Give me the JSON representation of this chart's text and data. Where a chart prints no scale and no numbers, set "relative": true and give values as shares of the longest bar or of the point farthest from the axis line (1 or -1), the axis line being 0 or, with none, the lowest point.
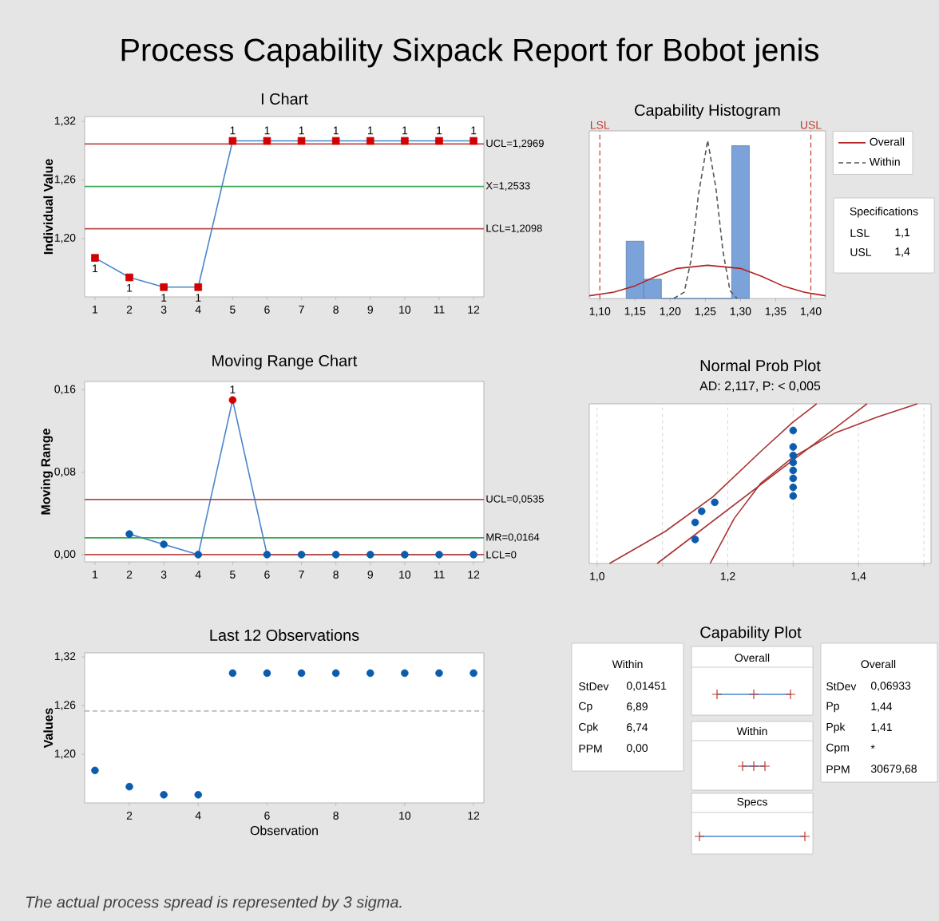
{
  "chart_data": [
    {
      "type": "other",
      "title": "Process Capability Sixpack Report for Bobot jenis",
      "annotations": [
        "The actual process spread is represented by 3 sigma."
      ]
    },
    {
      "type": "line",
      "title": "I Chart",
      "ylabel": "Individual Value",
      "x": [
        1,
        2,
        3,
        4,
        5,
        6,
        7,
        8,
        9,
        10,
        11,
        12
      ],
      "xlim": [
        0.7,
        12.3
      ],
      "ylim": [
        1.14,
        1.325
      ],
      "xticks": [
        1,
        2,
        3,
        4,
        5,
        6,
        7,
        8,
        9,
        10,
        11,
        12
      ],
      "yticks": [
        {
          "value": 1.2,
          "label": "1,20"
        },
        {
          "value": 1.26,
          "label": "1,26"
        },
        {
          "value": 1.32,
          "label": "1,32"
        }
      ],
      "marker": "square",
      "series": [
        {
          "color": "#4a86cc",
          "values": [
            1.18,
            1.16,
            1.15,
            1.15,
            1.3,
            1.3,
            1.3,
            1.3,
            1.3,
            1.3,
            1.3,
            1.3
          ],
          "colors": [
            "#d40000",
            "#d40000",
            "#d40000",
            "#d40000",
            "#d40000",
            "#d40000",
            "#d40000",
            "#d40000",
            "#d40000",
            "#d40000",
            "#d40000",
            "#d40000"
          ]
        }
      ],
      "ref_lines": [
        {
          "axis": "y",
          "value": 1.2969,
          "label": "UCL=1,2969",
          "color": "#b94a48"
        },
        {
          "axis": "y",
          "value": 1.2533,
          "label": "X=1,2533",
          "color": "#3aa655"
        },
        {
          "axis": "y",
          "value": 1.2098,
          "label": "LCL=1,2098",
          "color": "#b94a48"
        }
      ],
      "annotations": [
        {
          "text": "1",
          "x": 1,
          "y": 1.18
        },
        {
          "text": "1",
          "x": 2,
          "y": 1.16
        },
        {
          "text": "1",
          "x": 3,
          "y": 1.15
        },
        {
          "text": "1",
          "x": 4,
          "y": 1.15
        },
        {
          "text": "1",
          "x": 5,
          "y": 1.3
        },
        {
          "text": "1",
          "x": 6,
          "y": 1.3
        },
        {
          "text": "1",
          "x": 7,
          "y": 1.3
        },
        {
          "text": "1",
          "x": 8,
          "y": 1.3
        },
        {
          "text": "1",
          "x": 9,
          "y": 1.3
        },
        {
          "text": "1",
          "x": 10,
          "y": 1.3
        },
        {
          "text": "1",
          "x": 11,
          "y": 1.3
        },
        {
          "text": "1",
          "x": 12,
          "y": 1.3
        }
      ]
    },
    {
      "type": "histogram",
      "title": "Capability Histogram",
      "relative": true,
      "xlim": [
        1.085,
        1.421
      ],
      "xticks": [
        {
          "value": 1.1,
          "label": "1,10"
        },
        {
          "value": 1.15,
          "label": "1,15"
        },
        {
          "value": 1.2,
          "label": "1,20"
        },
        {
          "value": 1.25,
          "label": "1,25"
        },
        {
          "value": 1.3,
          "label": "1,30"
        },
        {
          "value": 1.35,
          "label": "1,35"
        },
        {
          "value": 1.4,
          "label": "1,40"
        }
      ],
      "legend": "right",
      "series": [
        {
          "type": "histogram",
          "color": "#7ba3d9",
          "bins": [
            1.1375,
            1.1625,
            1.1875,
            1.2125,
            1.2375,
            1.2625,
            1.2875,
            1.3125
          ],
          "values": [
            0.362,
            0.122,
            0,
            0,
            0,
            0,
            0.966
          ]
        },
        {
          "type": "line",
          "name": "Overall",
          "color": "#b22222",
          "x": [
            1.085,
            1.12,
            1.15,
            1.18,
            1.21,
            1.2533,
            1.3,
            1.33,
            1.36,
            1.39,
            1.421
          ],
          "values": [
            0.017,
            0.04,
            0.08,
            0.14,
            0.19,
            0.21,
            0.19,
            0.14,
            0.08,
            0.04,
            0.017
          ]
        },
        {
          "type": "line",
          "name": "Within",
          "color": "#555555",
          "line_style": "dashed",
          "x": [
            1.205,
            1.22,
            1.23,
            1.24,
            1.2533,
            1.265,
            1.275,
            1.285,
            1.295
          ],
          "values": [
            0,
            0.04,
            0.25,
            0.65,
            1.0,
            0.7,
            0.3,
            0.05,
            0
          ]
        }
      ],
      "ref_lines": [
        {
          "axis": "x",
          "value": 1.1,
          "label": "LSL",
          "color": "#c0392b",
          "line_style": "dashed"
        },
        {
          "axis": "x",
          "value": 1.4,
          "label": "USL",
          "color": "#c0392b",
          "line_style": "dashed"
        }
      ],
      "annotations": [
        "Specifications",
        "LSL",
        "1,1",
        "USL",
        "1,4"
      ]
    },
    {
      "type": "line",
      "title": "Moving Range Chart",
      "ylabel": "Moving Range",
      "x": [
        2,
        3,
        4,
        5,
        6,
        7,
        8,
        9,
        10,
        11,
        12
      ],
      "xlim": [
        0.7,
        12.3
      ],
      "ylim": [
        -0.007,
        0.168
      ],
      "xticks": [
        1,
        2,
        3,
        4,
        5,
        6,
        7,
        8,
        9,
        10,
        11,
        12
      ],
      "yticks": [
        {
          "value": 0,
          "label": "0,00"
        },
        {
          "value": 0.08,
          "label": "0,08"
        },
        {
          "value": 0.16,
          "label": "0,16"
        }
      ],
      "marker": "circle",
      "series": [
        {
          "color": "#4a86cc",
          "values": [
            0.02,
            0.01,
            0,
            0.15,
            0,
            0,
            0,
            0,
            0,
            0,
            0
          ],
          "colors": [
            "#0b5cad",
            "#0b5cad",
            "#0b5cad",
            "#d40000",
            "#0b5cad",
            "#0b5cad",
            "#0b5cad",
            "#0b5cad",
            "#0b5cad",
            "#0b5cad",
            "#0b5cad"
          ]
        }
      ],
      "ref_lines": [
        {
          "axis": "y",
          "value": 0.0535,
          "label": "UCL=0,0535",
          "color": "#b94a48"
        },
        {
          "axis": "y",
          "value": 0.0164,
          "label": "MR=0,0164",
          "color": "#3aa655"
        },
        {
          "axis": "y",
          "value": 0,
          "label": "LCL=0",
          "color": "#b94a48"
        }
      ],
      "annotations": [
        {
          "text": "1",
          "x": 5,
          "y": 0.15
        }
      ]
    },
    {
      "type": "scatter",
      "title": "Normal Prob Plot",
      "subtitle": "AD: 2,117, P: < 0,005",
      "relative": true,
      "xlim": [
        0.988,
        1.511
      ],
      "xticks": [
        {
          "value": 1.0,
          "label": "1,0"
        },
        {
          "value": 1.1,
          "label": null
        },
        {
          "value": 1.2,
          "label": "1,2"
        },
        {
          "value": 1.3,
          "label": null
        },
        {
          "value": 1.4,
          "label": "1,4"
        },
        {
          "value": 1.5,
          "label": null
        }
      ],
      "tick_labels": "x",
      "grid": "x",
      "marker": "circle",
      "series": [
        {
          "type": "line",
          "marker": "none",
          "color": "#a83232",
          "x": [
            1.092,
            1.413
          ],
          "values": [
            0,
            1.0
          ]
        },
        {
          "type": "line",
          "marker": "none",
          "color": "#a83232",
          "x": [
            1.019,
            1.104,
            1.177,
            1.25,
            1.299,
            1.336
          ],
          "values": [
            0,
            0.2,
            0.417,
            0.7,
            0.883,
            1.0
          ]
        },
        {
          "type": "line",
          "marker": "none",
          "color": "#a83232",
          "x": [
            1.173,
            1.21,
            1.25,
            1.3,
            1.364,
            1.429,
            1.49
          ],
          "values": [
            0,
            0.283,
            0.5,
            0.667,
            0.817,
            0.917,
            1.0
          ]
        },
        {
          "type": "scatter",
          "color": "#0b5cad",
          "x": [
            1.15,
            1.15,
            1.16,
            1.18,
            1.3,
            1.3,
            1.3,
            1.3,
            1.3,
            1.3,
            1.3,
            1.3
          ],
          "values": [
            0.15,
            0.257,
            0.327,
            0.383,
            0.423,
            0.477,
            0.533,
            0.583,
            0.633,
            0.677,
            0.73,
            0.833
          ]
        }
      ]
    },
    {
      "type": "scatter",
      "title": "Last 12 Observations",
      "xlabel": "Observation",
      "ylabel": "Values",
      "x": [
        1,
        2,
        3,
        4,
        5,
        6,
        7,
        8,
        9,
        10,
        11,
        12
      ],
      "xlim": [
        0.7,
        12.3
      ],
      "ylim": [
        1.14,
        1.325
      ],
      "xticks": [
        2,
        4,
        6,
        8,
        10,
        12
      ],
      "yticks": [
        {
          "value": 1.2,
          "label": "1,20"
        },
        {
          "value": 1.26,
          "label": "1,26"
        },
        {
          "value": 1.32,
          "label": "1,32"
        }
      ],
      "marker": "circle",
      "series": [
        {
          "color": "#0b5cad",
          "values": [
            1.18,
            1.16,
            1.15,
            1.15,
            1.3,
            1.3,
            1.3,
            1.3,
            1.3,
            1.3,
            1.3,
            1.3
          ]
        }
      ],
      "ref_lines": [
        {
          "axis": "y",
          "value": 1.2533,
          "color": "#bbbbbb",
          "line_style": "dashed"
        }
      ]
    },
    {
      "type": "other",
      "title": "Capability Plot",
      "annotations": [
        "Within",
        "StDev",
        "Cp",
        "Cpk",
        "PPM",
        "0,01451",
        "6,89",
        "6,74",
        "0,00",
        "Overall",
        "StDev",
        "Pp",
        "Ppk",
        "Cpm",
        "PPM",
        "0,06933",
        "1,44",
        "1,41",
        "*",
        "30679,68",
        "Overall",
        "Within",
        "Specs"
      ]
    }
  ]
}
